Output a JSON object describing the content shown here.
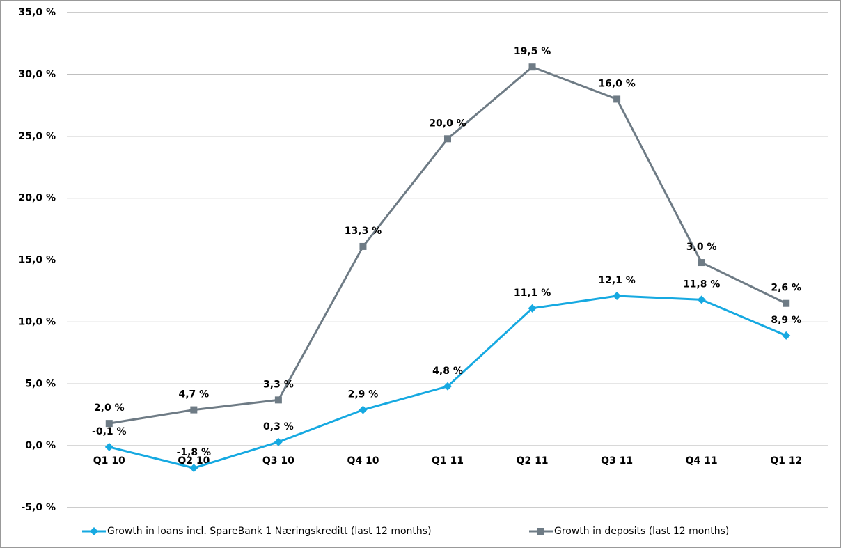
{
  "chart_data": {
    "type": "line",
    "categories": [
      "Q1 10",
      "Q2 10",
      "Q3 10",
      "Q4 10",
      "Q1 11",
      "Q2 11",
      "Q3 11",
      "Q4 11",
      "Q1 12"
    ],
    "series": [
      {
        "name": "Growth in loans incl. SpareBank 1 Næringskreditt (last 12 months)",
        "color": "#16a9e1",
        "marker": "diamond",
        "values": [
          -0.1,
          -1.8,
          0.3,
          2.9,
          4.8,
          11.1,
          12.1,
          11.8,
          8.9
        ],
        "value_labels": [
          "-0,1 %",
          "-1,8 %",
          "0,3 %",
          "2,9 %",
          "4,8 %",
          "11,1 %",
          "12,1 %",
          "11,8 %",
          "8,9 %"
        ]
      },
      {
        "name": "Growth in deposits (last 12 months)",
        "color": "#6e7b85",
        "marker": "square",
        "values": [
          1.8,
          2.9,
          3.7,
          16.1,
          24.8,
          30.6,
          28.0,
          14.8,
          11.5
        ],
        "annotations": [
          "2,0 %",
          "4,7 %",
          "3,3 %",
          "13,3 %",
          "20,0 %",
          "19,5 %",
          "16,0 %",
          "3,0 %",
          "2,6 %"
        ]
      }
    ],
    "ylim": [
      -5,
      35
    ],
    "yticks": [
      {
        "value": -5,
        "label": "-5,0 %"
      },
      {
        "value": 0,
        "label": "0,0 %"
      },
      {
        "value": 5,
        "label": "5,0 %"
      },
      {
        "value": 10,
        "label": "10,0 %"
      },
      {
        "value": 15,
        "label": "15,0 %"
      },
      {
        "value": 20,
        "label": "20,0 %"
      },
      {
        "value": 25,
        "label": "25,0 %"
      },
      {
        "value": 30,
        "label": "30,0 %"
      },
      {
        "value": 35,
        "label": "35,0 %"
      }
    ],
    "grid": true,
    "legend": "bottom"
  }
}
